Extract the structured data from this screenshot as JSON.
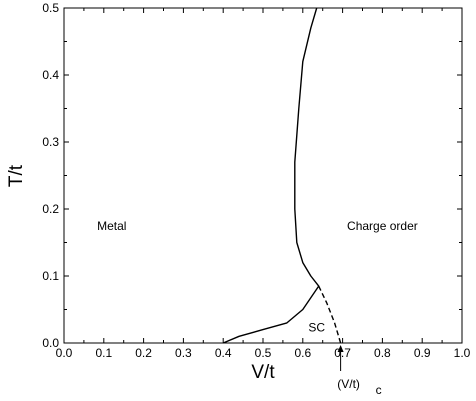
{
  "chart_data": {
    "type": "line",
    "xlabel": "V/t",
    "ylabel": "T/t",
    "xlim": [
      0.0,
      1.0
    ],
    "ylim": [
      0.0,
      0.5
    ],
    "xticks": [
      0.0,
      0.1,
      0.2,
      0.3,
      0.4,
      0.5,
      0.6,
      0.7,
      0.8,
      0.9,
      1.0
    ],
    "yticks": [
      0.0,
      0.1,
      0.2,
      0.3,
      0.4,
      0.5
    ],
    "xtick_labels": [
      "0.0",
      "0.1",
      "0.2",
      "0.3",
      "0.4",
      "0.5",
      "0.6",
      "0.7",
      "0.8",
      "0.9",
      "1.0"
    ],
    "ytick_labels": [
      "0.0",
      "0.1",
      "0.2",
      "0.3",
      "0.4",
      "0.5"
    ],
    "grid": false,
    "legend": "none",
    "series": [
      {
        "style": "solid",
        "color": "#000000",
        "points": [
          [
            0.4,
            0.0
          ],
          [
            0.44,
            0.01
          ],
          [
            0.5,
            0.02
          ],
          [
            0.56,
            0.03
          ],
          [
            0.6,
            0.05
          ],
          [
            0.64,
            0.085
          ],
          [
            0.62,
            0.1
          ],
          [
            0.6,
            0.12
          ],
          [
            0.585,
            0.15
          ],
          [
            0.58,
            0.2
          ],
          [
            0.58,
            0.27
          ],
          [
            0.59,
            0.35
          ],
          [
            0.6,
            0.42
          ],
          [
            0.62,
            0.47
          ],
          [
            0.635,
            0.5
          ]
        ]
      },
      {
        "style": "dashed",
        "color": "#000000",
        "points": [
          [
            0.64,
            0.085
          ],
          [
            0.66,
            0.06
          ],
          [
            0.68,
            0.03
          ],
          [
            0.69,
            0.01
          ],
          [
            0.695,
            0.0
          ]
        ]
      }
    ],
    "annotations": [
      {
        "text": "Metal",
        "x": 0.12,
        "y": 0.175
      },
      {
        "text": "Charge order",
        "x": 0.8,
        "y": 0.175
      },
      {
        "text": "SC",
        "x": 0.635,
        "y": 0.023
      }
    ],
    "critical_marker": {
      "x": 0.695,
      "label_main": "(V/t)",
      "label_sub": "c"
    }
  }
}
